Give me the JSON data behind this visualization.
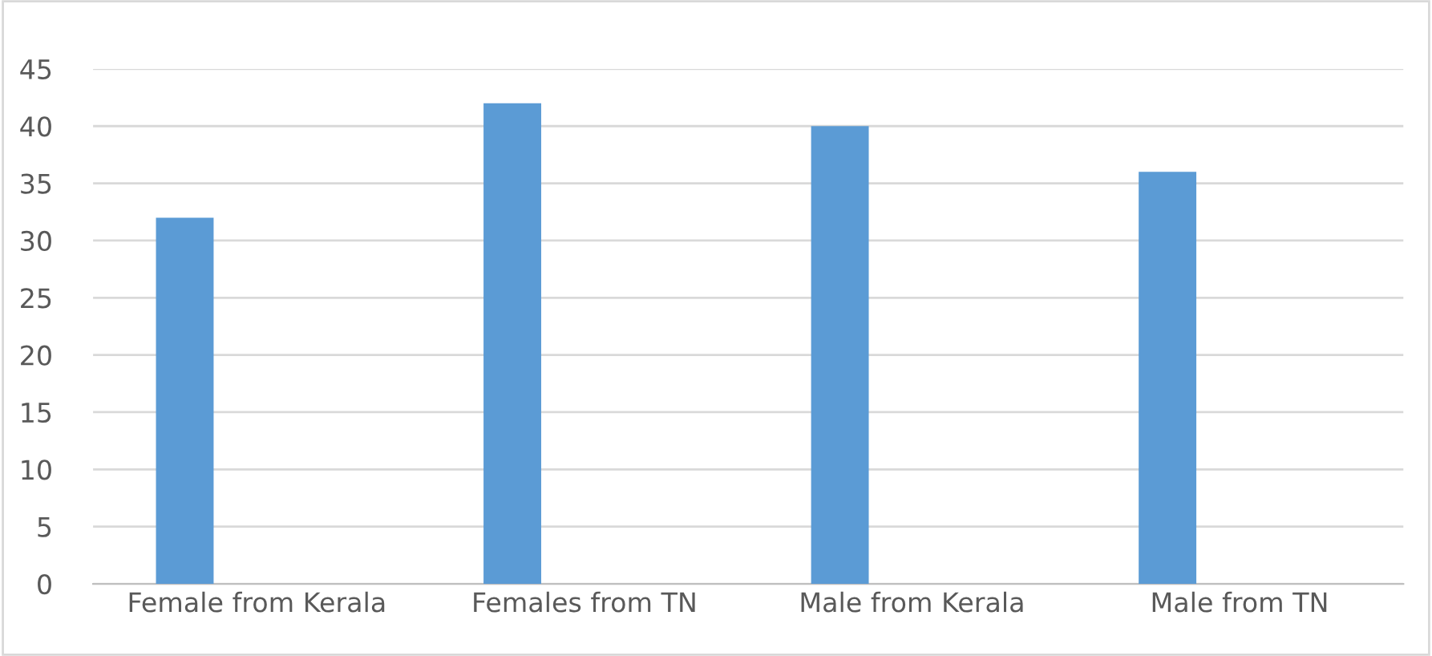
{
  "chart_data": {
    "type": "bar",
    "categories": [
      "Female from Kerala",
      "Females from TN",
      "Male from Kerala",
      "Male from TN"
    ],
    "values": [
      32,
      42,
      40,
      36
    ],
    "color": "#5b9bd5",
    "ylim": [
      0,
      45
    ],
    "yticks": [
      0,
      5,
      10,
      15,
      20,
      25,
      30,
      35,
      40,
      45
    ],
    "grid": "y"
  }
}
